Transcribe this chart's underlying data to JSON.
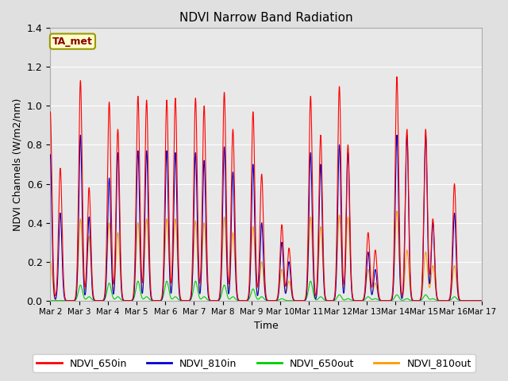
{
  "title": "NDVI Narrow Band Radiation",
  "ylabel": "NDVI Channels (W/m2/nm)",
  "xlabel": "Time",
  "annotation": "TA_met",
  "ylim": [
    0.0,
    1.4
  ],
  "colors": {
    "NDVI_650in": "#ff0000",
    "NDVI_810in": "#0000cc",
    "NDVI_650out": "#00cc00",
    "NDVI_810out": "#ff9900"
  },
  "peaks": [
    {
      "day": 2.0,
      "r650in": 0.97,
      "r810in": 0.75,
      "r650out": 0.0,
      "r810out": 0.21,
      "day2": 2.35,
      "r650in2": 0.68,
      "r810in2": 0.45,
      "r650out2": 0.0,
      "r810out2": 0.0
    },
    {
      "day": 3.05,
      "r650in": 1.13,
      "r810in": 0.85,
      "r650out": 0.08,
      "r810out": 0.42,
      "day2": 3.35,
      "r650in2": 0.58,
      "r810in2": 0.43,
      "r650out2": 0.02,
      "r810out2": 0.33
    },
    {
      "day": 4.05,
      "r650in": 1.02,
      "r810in": 0.63,
      "r650out": 0.09,
      "r810out": 0.4,
      "day2": 4.35,
      "r650in2": 0.88,
      "r810in2": 0.76,
      "r650out2": 0.02,
      "r810out2": 0.35
    },
    {
      "day": 5.05,
      "r650in": 1.05,
      "r810in": 0.77,
      "r650out": 0.1,
      "r810out": 0.4,
      "day2": 5.35,
      "r650in2": 1.03,
      "r810in2": 0.77,
      "r650out2": 0.02,
      "r810out2": 0.42
    },
    {
      "day": 6.05,
      "r650in": 1.03,
      "r810in": 0.77,
      "r650out": 0.1,
      "r810out": 0.42,
      "day2": 6.35,
      "r650in2": 1.04,
      "r810in2": 0.76,
      "r650out2": 0.02,
      "r810out2": 0.42
    },
    {
      "day": 7.05,
      "r650in": 1.04,
      "r810in": 0.76,
      "r650out": 0.1,
      "r810out": 0.41,
      "day2": 7.35,
      "r650in2": 1.0,
      "r810in2": 0.72,
      "r650out2": 0.02,
      "r810out2": 0.4
    },
    {
      "day": 8.05,
      "r650in": 1.07,
      "r810in": 0.79,
      "r650out": 0.08,
      "r810out": 0.43,
      "day2": 8.35,
      "r650in2": 0.88,
      "r810in2": 0.66,
      "r650out2": 0.02,
      "r810out2": 0.35
    },
    {
      "day": 9.05,
      "r650in": 0.97,
      "r810in": 0.7,
      "r650out": 0.06,
      "r810out": 0.38,
      "day2": 9.35,
      "r650in2": 0.65,
      "r810in2": 0.4,
      "r650out2": 0.02,
      "r810out2": 0.2
    },
    {
      "day": 10.05,
      "r650in": 0.39,
      "r810in": 0.3,
      "r650out": 0.01,
      "r810out": 0.16,
      "day2": 10.3,
      "r650in2": 0.27,
      "r810in2": 0.2,
      "r650out2": 0.0,
      "r810out2": 0.1
    },
    {
      "day": 11.05,
      "r650in": 1.05,
      "r810in": 0.76,
      "r650out": 0.1,
      "r810out": 0.43,
      "day2": 11.4,
      "r650in2": 0.85,
      "r810in2": 0.7,
      "r650out2": 0.02,
      "r810out2": 0.38
    },
    {
      "day": 12.05,
      "r650in": 1.1,
      "r810in": 0.8,
      "r650out": 0.03,
      "r810out": 0.44,
      "day2": 12.35,
      "r650in2": 0.8,
      "r810in2": 0.76,
      "r650out2": 0.01,
      "r810out2": 0.43
    },
    {
      "day": 13.05,
      "r650in": 0.35,
      "r810in": 0.25,
      "r650out": 0.02,
      "r810out": 0.16,
      "day2": 13.3,
      "r650in2": 0.26,
      "r810in2": 0.16,
      "r650out2": 0.01,
      "r810out2": 0.09
    },
    {
      "day": 14.05,
      "r650in": 1.15,
      "r810in": 0.85,
      "r650out": 0.03,
      "r810out": 0.46,
      "day2": 14.4,
      "r650in2": 0.88,
      "r810in2": 0.85,
      "r650out2": 0.01,
      "r810out2": 0.26
    },
    {
      "day": 15.05,
      "r650in": 0.88,
      "r810in": 0.85,
      "r650out": 0.03,
      "r810out": 0.25,
      "day2": 15.3,
      "r650in2": 0.42,
      "r810in2": 0.4,
      "r650out2": 0.01,
      "r810out2": 0.18
    },
    {
      "day": 16.05,
      "r650in": 0.6,
      "r810in": 0.45,
      "r650out": 0.02,
      "r810out": 0.18,
      "day2": null,
      "r650in2": 0.0,
      "r810in2": 0.0,
      "r650out2": 0.0,
      "r810out2": 0.0
    }
  ],
  "xtick_labels": [
    "Mar 2",
    "Mar 3",
    "Mar 4",
    "Mar 5",
    "Mar 6",
    "Mar 7",
    "Mar 8",
    "Mar 9",
    "Mar 10",
    "Mar 11",
    "Mar 12",
    "Mar 13",
    "Mar 14",
    "Mar 15",
    "Mar 16",
    "Mar 17"
  ],
  "xtick_positions": [
    2,
    3,
    4,
    5,
    6,
    7,
    8,
    9,
    10,
    11,
    12,
    13,
    14,
    15,
    16,
    17
  ]
}
